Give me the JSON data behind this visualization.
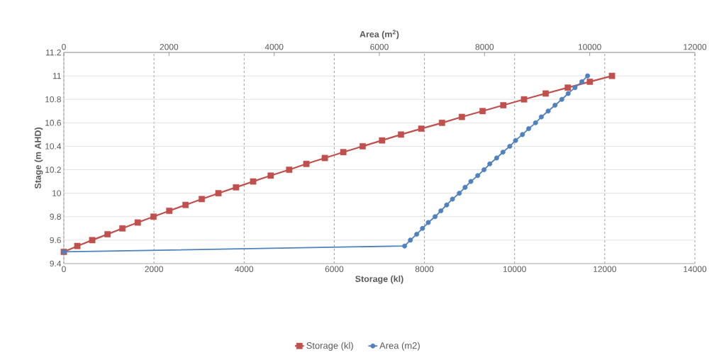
{
  "chart_data": {
    "type": "line",
    "xlabel": "Storage (kl)",
    "ylabel": "Stage (m AHD)",
    "x2label": "Area (m$^{2}$)",
    "xlim": [
      0,
      14000
    ],
    "xticks": [
      0,
      2000,
      4000,
      6000,
      8000,
      10000,
      12000,
      14000
    ],
    "x2lim": [
      0,
      12000
    ],
    "x2ticks": [
      0,
      2000,
      4000,
      6000,
      8000,
      10000,
      12000
    ],
    "ylim": [
      9.4,
      11.2
    ],
    "yticks": [
      9.4,
      9.6,
      9.8,
      10,
      10.2,
      10.4,
      10.6,
      10.8,
      11,
      11.2
    ],
    "grid": true,
    "legend": "bottom",
    "line_style": "solid",
    "series": [
      {
        "name": "Storage (kl)",
        "color": "#c0504d",
        "marker": "square",
        "x": [
          0,
          300,
          630,
          970,
          1300,
          1640,
          1990,
          2340,
          2700,
          3060,
          3430,
          3820,
          4200,
          4590,
          5000,
          5380,
          5790,
          6200,
          6630,
          7060,
          7480,
          7930,
          8390,
          8830,
          9290,
          9750,
          10210,
          10690,
          11180,
          11670,
          12160
        ],
        "values": [
          9.5,
          9.55,
          9.6,
          9.65,
          9.7,
          9.75,
          9.8,
          9.85,
          9.9,
          9.95,
          10,
          10.05,
          10.1,
          10.15,
          10.2,
          10.25,
          10.3,
          10.35,
          10.4,
          10.45,
          10.5,
          10.55,
          10.6,
          10.65,
          10.7,
          10.75,
          10.8,
          10.85,
          10.9,
          10.95,
          11
        ]
      },
      {
        "name": "Area (m2)",
        "color": "#4f81bd",
        "marker": "circle",
        "axis": "x2",
        "x": [
          0,
          6480,
          6590,
          6710,
          6820,
          6930,
          7060,
          7170,
          7280,
          7390,
          7520,
          7630,
          7740,
          7870,
          7990,
          8100,
          8230,
          8350,
          8480,
          8590,
          8720,
          8840,
          8970,
          9080,
          9210,
          9340,
          9470,
          9590,
          9720,
          9850,
          9960
        ],
        "values": [
          9.5,
          9.55,
          9.6,
          9.65,
          9.7,
          9.75,
          9.8,
          9.85,
          9.9,
          9.95,
          10,
          10.05,
          10.1,
          10.15,
          10.2,
          10.25,
          10.3,
          10.35,
          10.4,
          10.45,
          10.5,
          10.55,
          10.6,
          10.65,
          10.7,
          10.75,
          10.8,
          10.85,
          10.9,
          10.95,
          11
        ]
      }
    ]
  }
}
